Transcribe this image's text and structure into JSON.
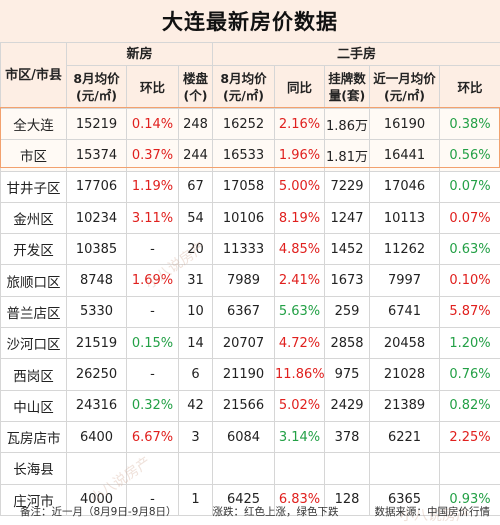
{
  "title": "大连最新房价数据",
  "header": {
    "city": "市区/市县",
    "new_group": "新房",
    "second_group": "二手房",
    "new_price": "8月均价(元/㎡)",
    "new_mom": "环比",
    "new_projects": "楼盘(个)",
    "sec_price": "8月均价(元/㎡)",
    "sec_yoy": "同比",
    "sec_listings": "挂牌数量(套)",
    "sec_recent": "近一月均价(元/㎡)",
    "sec_mom": "环比"
  },
  "rows": [
    {
      "name": "全大连",
      "np": "15219",
      "nm": "0.14%",
      "nmc": "red",
      "nc": "248",
      "sp": "16252",
      "sy": "2.16%",
      "syc": "red",
      "sl": "1.86万",
      "sr": "16190",
      "sm": "0.38%",
      "smc": "green"
    },
    {
      "name": "市区",
      "np": "15374",
      "nm": "0.37%",
      "nmc": "red",
      "nc": "244",
      "sp": "16533",
      "sy": "1.96%",
      "syc": "red",
      "sl": "1.81万",
      "sr": "16441",
      "sm": "0.56%",
      "smc": "green"
    },
    {
      "name": "甘井子区",
      "np": "17706",
      "nm": "1.19%",
      "nmc": "red",
      "nc": "67",
      "sp": "17058",
      "sy": "5.00%",
      "syc": "red",
      "sl": "7229",
      "sr": "17046",
      "sm": "0.07%",
      "smc": "green"
    },
    {
      "name": "金州区",
      "np": "10234",
      "nm": "3.11%",
      "nmc": "red",
      "nc": "54",
      "sp": "10106",
      "sy": "8.19%",
      "syc": "red",
      "sl": "1247",
      "sr": "10113",
      "sm": "0.07%",
      "smc": "red"
    },
    {
      "name": "开发区",
      "np": "10385",
      "nm": "-",
      "nmc": "",
      "nc": "20",
      "sp": "11333",
      "sy": "4.85%",
      "syc": "red",
      "sl": "1452",
      "sr": "11262",
      "sm": "0.63%",
      "smc": "green"
    },
    {
      "name": "旅顺口区",
      "np": "8748",
      "nm": "1.69%",
      "nmc": "red",
      "nc": "31",
      "sp": "7989",
      "sy": "2.41%",
      "syc": "red",
      "sl": "1673",
      "sr": "7997",
      "sm": "0.10%",
      "smc": "red"
    },
    {
      "name": "普兰店区",
      "np": "5330",
      "nm": "-",
      "nmc": "",
      "nc": "10",
      "sp": "6367",
      "sy": "5.63%",
      "syc": "green",
      "sl": "259",
      "sr": "6741",
      "sm": "5.87%",
      "smc": "red"
    },
    {
      "name": "沙河口区",
      "np": "21519",
      "nm": "0.15%",
      "nmc": "green",
      "nc": "14",
      "sp": "20707",
      "sy": "4.72%",
      "syc": "red",
      "sl": "2858",
      "sr": "20458",
      "sm": "1.20%",
      "smc": "green"
    },
    {
      "name": "西岗区",
      "np": "26250",
      "nm": "-",
      "nmc": "",
      "nc": "6",
      "sp": "21190",
      "sy": "11.86%",
      "syc": "red",
      "sl": "975",
      "sr": "21028",
      "sm": "0.76%",
      "smc": "green"
    },
    {
      "name": "中山区",
      "np": "24316",
      "nm": "0.32%",
      "nmc": "green",
      "nc": "42",
      "sp": "21566",
      "sy": "5.02%",
      "syc": "red",
      "sl": "2429",
      "sr": "21389",
      "sm": "0.82%",
      "smc": "green"
    },
    {
      "name": "瓦房店市",
      "np": "6400",
      "nm": "6.67%",
      "nmc": "red",
      "nc": "3",
      "sp": "6084",
      "sy": "3.14%",
      "syc": "green",
      "sl": "378",
      "sr": "6221",
      "sm": "2.25%",
      "smc": "red"
    },
    {
      "name": "长海县",
      "np": "",
      "nm": "",
      "nmc": "",
      "nc": "",
      "sp": "",
      "sy": "",
      "syc": "",
      "sl": "",
      "sr": "",
      "sm": "",
      "smc": ""
    },
    {
      "name": "庄河市",
      "np": "4000",
      "nm": "-",
      "nmc": "",
      "nc": "1",
      "sp": "6425",
      "sy": "6.83%",
      "syc": "red",
      "sl": "128",
      "sr": "6365",
      "sm": "0.93%",
      "smc": "green"
    }
  ],
  "footer": {
    "note": "备注：近一月（8月9日-9月8日）",
    "legend": "涨跌：红色上涨，绿色下跌",
    "source": "数据来源：中国房价行情"
  },
  "watermarks": [
    "小八说房产",
    "小八说房产",
    "小八说房产"
  ],
  "colors": {
    "header_bg": "#fdeee4",
    "up": "#e0201e",
    "down": "#23a046",
    "highlight": "#f2a16e"
  }
}
